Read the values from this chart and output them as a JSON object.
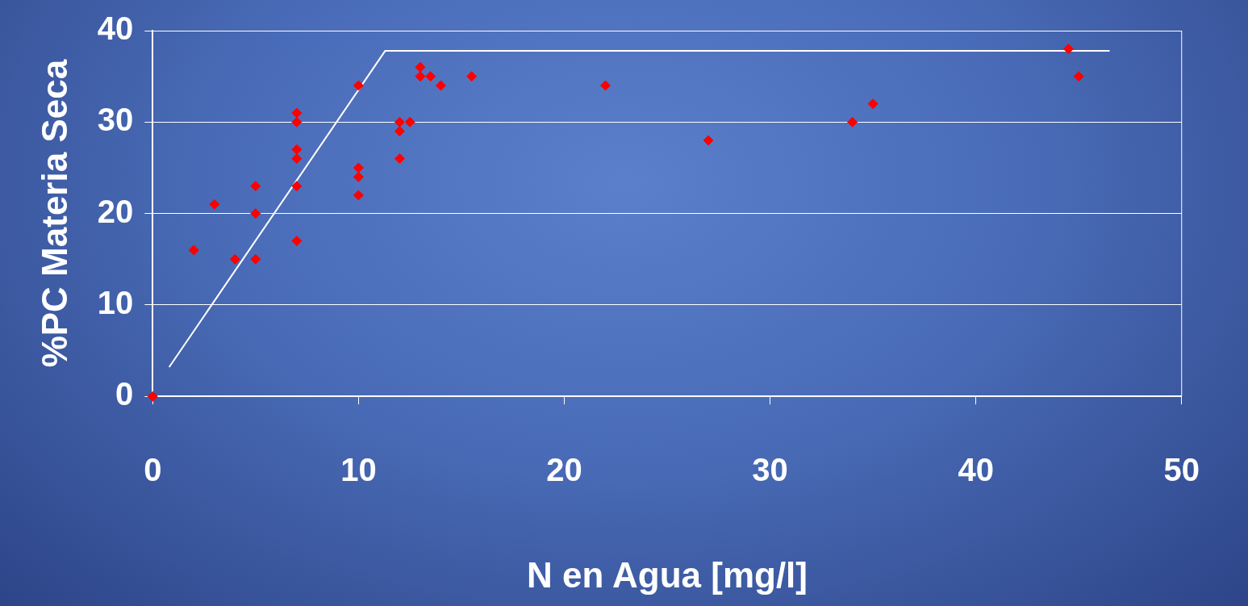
{
  "chart_data": {
    "type": "scatter",
    "xlabel": "N en Agua [mg/l]",
    "ylabel": "%PC Materia Seca",
    "xlim": [
      0,
      50
    ],
    "xticks": [
      0,
      10,
      20,
      30,
      40,
      50
    ],
    "ylim": [
      0,
      40
    ],
    "yticks": [
      0,
      10,
      20,
      30,
      40
    ],
    "grid": "y",
    "legend": false,
    "marker": "diamond",
    "series": [
      {
        "color": "#ff0000",
        "x": [
          0,
          2,
          3,
          4,
          5,
          5,
          5,
          7,
          7,
          7,
          7,
          7,
          7,
          10,
          10,
          10,
          10,
          12,
          12,
          12,
          12.5,
          13,
          13,
          13.5,
          14,
          15.5,
          22,
          27,
          34,
          35,
          44.5,
          45
        ],
        "values": [
          0,
          16,
          21,
          15,
          23,
          20,
          15,
          31,
          30,
          27,
          26,
          23,
          17,
          34,
          25,
          24,
          22,
          30,
          29,
          26,
          30,
          36,
          35,
          35,
          34,
          35,
          34,
          28,
          30,
          32,
          38,
          35
        ]
      },
      {
        "type": "line",
        "color": "#ffffff",
        "marker": "none",
        "line_style": "solid",
        "x": [
          0.8,
          11.3,
          46.5
        ],
        "values": [
          3.2,
          37.8,
          37.8
        ]
      }
    ]
  }
}
